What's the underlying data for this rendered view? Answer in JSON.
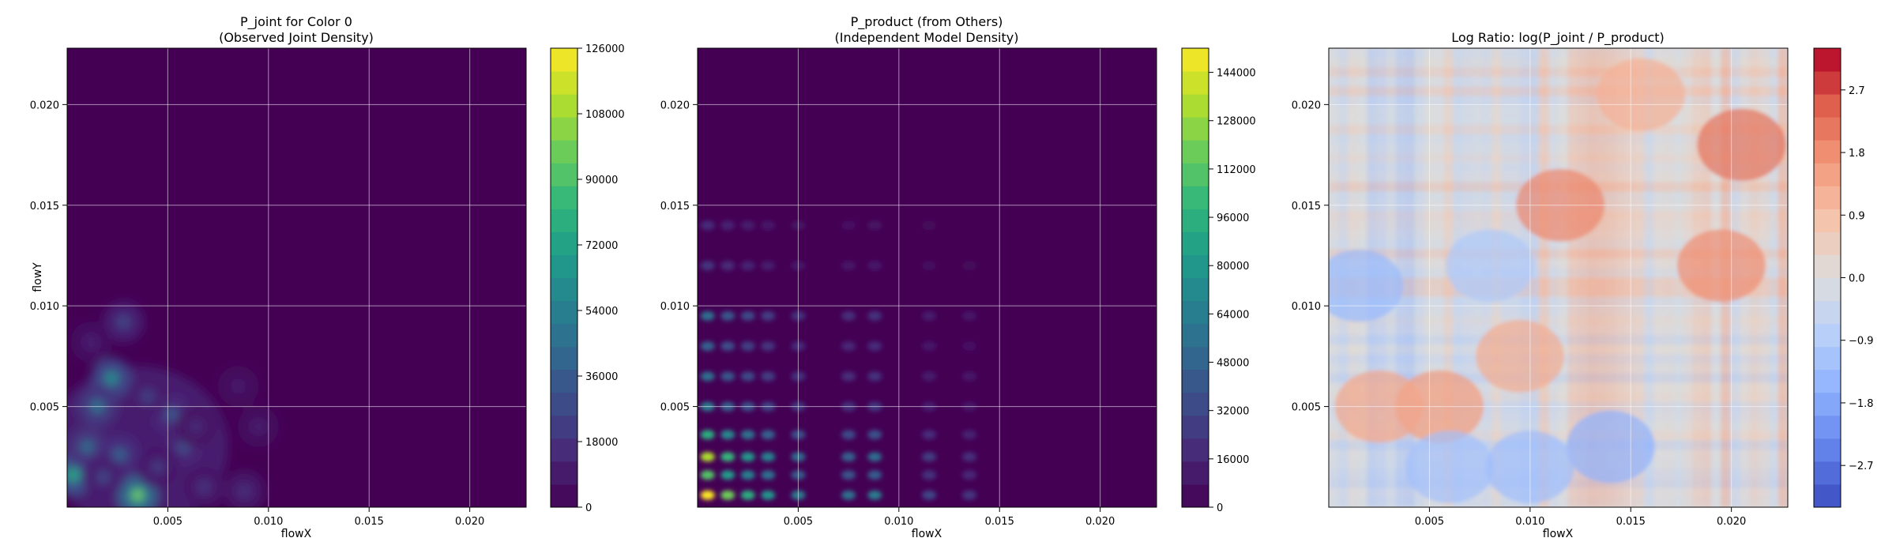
{
  "chart_data": [
    {
      "type": "heatmap",
      "title": "P_joint for Color 0\n(Observed Joint Density)",
      "xlabel": "flowX",
      "ylabel": "flowY",
      "xlim": [
        0.0,
        0.0228
      ],
      "ylim": [
        0.0,
        0.0228
      ],
      "xticks": [
        0.005,
        0.01,
        0.015,
        0.02
      ],
      "yticks": [
        0.005,
        0.01,
        0.015,
        0.02
      ],
      "xtick_labels": [
        "0.005",
        "0.010",
        "0.015",
        "0.020"
      ],
      "ytick_labels": [
        "0.005",
        "0.010",
        "0.015",
        "0.020"
      ],
      "grid": true,
      "colormap": "viridis",
      "colorbar_range": [
        0,
        126000
      ],
      "colorbar_ticks": [
        0,
        18000,
        36000,
        54000,
        72000,
        90000,
        108000,
        126000
      ],
      "colorbar_tick_labels": [
        "0",
        "18000",
        "36000",
        "54000",
        "72000",
        "90000",
        "108000",
        "126000"
      ],
      "peaks": [
        {
          "x": 0.0035,
          "y": 0.0006,
          "value": 110000
        },
        {
          "x": 0.0003,
          "y": 0.0016,
          "value": 85000
        },
        {
          "x": 0.0022,
          "y": 0.0064,
          "value": 70000
        },
        {
          "x": 0.0015,
          "y": 0.005,
          "value": 55000
        },
        {
          "x": 0.001,
          "y": 0.003,
          "value": 50000
        },
        {
          "x": 0.0026,
          "y": 0.0026,
          "value": 45000
        },
        {
          "x": 0.0052,
          "y": 0.0046,
          "value": 40000
        },
        {
          "x": 0.0058,
          "y": 0.003,
          "value": 35000
        },
        {
          "x": 0.0028,
          "y": 0.0092,
          "value": 30000
        },
        {
          "x": 0.004,
          "y": 0.0055,
          "value": 28000
        },
        {
          "x": 0.0018,
          "y": 0.0015,
          "value": 30000
        },
        {
          "x": 0.0068,
          "y": 0.001,
          "value": 22000
        },
        {
          "x": 0.0088,
          "y": 0.0008,
          "value": 20000
        },
        {
          "x": 0.0045,
          "y": 0.002,
          "value": 25000
        },
        {
          "x": 0.0064,
          "y": 0.004,
          "value": 18000
        },
        {
          "x": 0.0095,
          "y": 0.004,
          "value": 12000
        },
        {
          "x": 0.0085,
          "y": 0.006,
          "value": 10000
        },
        {
          "x": 0.0012,
          "y": 0.0082,
          "value": 14000
        }
      ]
    },
    {
      "type": "heatmap",
      "title": "P_product (from Others)\n(Independent Model Density)",
      "xlabel": "flowX",
      "ylabel": "",
      "xlim": [
        0.0,
        0.0228
      ],
      "ylim": [
        0.0,
        0.0228
      ],
      "xticks": [
        0.005,
        0.01,
        0.015,
        0.02
      ],
      "yticks": [
        0.005,
        0.01,
        0.015,
        0.02
      ],
      "xtick_labels": [
        "0.005",
        "0.010",
        "0.015",
        "0.020"
      ],
      "ytick_labels": [
        "0.005",
        "0.010",
        "0.015",
        "0.020"
      ],
      "grid": true,
      "colormap": "viridis",
      "colorbar_range": [
        0,
        152000
      ],
      "colorbar_ticks": [
        0,
        16000,
        32000,
        48000,
        64000,
        80000,
        96000,
        112000,
        128000,
        144000
      ],
      "colorbar_tick_labels": [
        "0",
        "16000",
        "32000",
        "48000",
        "64000",
        "80000",
        "96000",
        "112000",
        "128000",
        "144000"
      ],
      "x_marginal_peaks": [
        {
          "x": 0.0005,
          "weight": 1.0
        },
        {
          "x": 0.0015,
          "weight": 0.75
        },
        {
          "x": 0.0025,
          "weight": 0.6
        },
        {
          "x": 0.0035,
          "weight": 0.5
        },
        {
          "x": 0.005,
          "weight": 0.4
        },
        {
          "x": 0.0075,
          "weight": 0.35
        },
        {
          "x": 0.0088,
          "weight": 0.4
        },
        {
          "x": 0.0115,
          "weight": 0.2
        },
        {
          "x": 0.0135,
          "weight": 0.15
        }
      ],
      "y_marginal_peaks": [
        {
          "y": 0.0006,
          "weight": 1.0
        },
        {
          "y": 0.0016,
          "weight": 0.7
        },
        {
          "y": 0.0025,
          "weight": 0.85
        },
        {
          "y": 0.0036,
          "weight": 0.6
        },
        {
          "y": 0.005,
          "weight": 0.4
        },
        {
          "y": 0.0065,
          "weight": 0.35
        },
        {
          "y": 0.008,
          "weight": 0.3
        },
        {
          "y": 0.0095,
          "weight": 0.35
        },
        {
          "y": 0.012,
          "weight": 0.15
        },
        {
          "y": 0.014,
          "weight": 0.12
        }
      ],
      "peak_value": 150000
    },
    {
      "type": "heatmap",
      "title": "Log Ratio: log(P_joint / P_product)",
      "xlabel": "flowX",
      "ylabel": "",
      "xlim": [
        0.0,
        0.0228
      ],
      "ylim": [
        0.0,
        0.0228
      ],
      "xticks": [
        0.005,
        0.01,
        0.015,
        0.02
      ],
      "yticks": [
        0.005,
        0.01,
        0.015,
        0.02
      ],
      "xtick_labels": [
        "0.005",
        "0.010",
        "0.015",
        "0.020"
      ],
      "ytick_labels": [
        "0.005",
        "0.010",
        "0.015",
        "0.020"
      ],
      "grid": true,
      "colormap": "coolwarm",
      "colorbar_range": [
        -3.3,
        3.3
      ],
      "colorbar_ticks": [
        -2.7,
        -1.8,
        -0.9,
        0.0,
        0.9,
        1.8,
        2.7
      ],
      "colorbar_tick_labels": [
        "−2.7",
        "−1.8",
        "−0.9",
        "0.0",
        "0.9",
        "1.8",
        "2.7"
      ],
      "hot_regions": [
        {
          "x": 0.0205,
          "y": 0.018,
          "value": 2.2
        },
        {
          "x": 0.0195,
          "y": 0.012,
          "value": 1.8
        },
        {
          "x": 0.0115,
          "y": 0.015,
          "value": 1.9
        },
        {
          "x": 0.0055,
          "y": 0.005,
          "value": 1.6
        },
        {
          "x": 0.0025,
          "y": 0.005,
          "value": 1.4
        },
        {
          "x": 0.0095,
          "y": 0.0075,
          "value": 1.3
        },
        {
          "x": 0.0155,
          "y": 0.0205,
          "value": 1.2
        }
      ],
      "cold_regions": [
        {
          "x": 0.0015,
          "y": 0.011,
          "value": -1.4
        },
        {
          "x": 0.014,
          "y": 0.003,
          "value": -1.6
        },
        {
          "x": 0.008,
          "y": 0.012,
          "value": -1.0
        },
        {
          "x": 0.006,
          "y": 0.002,
          "value": -1.2
        },
        {
          "x": 0.01,
          "y": 0.002,
          "value": -1.3
        }
      ]
    }
  ]
}
